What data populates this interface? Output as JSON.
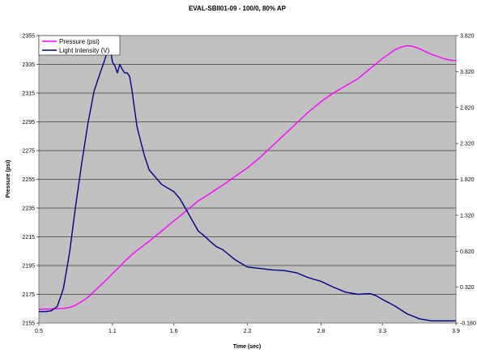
{
  "chart_data": {
    "type": "line",
    "title": "EVAL-SBII01-09 - 100/0, 80% AP",
    "xlabel": "Time (sec)",
    "ylabel": "Pressure (psi)",
    "y2label": "",
    "xlim": [
      0.5,
      3.9
    ],
    "ylim": [
      2155,
      2355
    ],
    "y2lim": [
      -0.18,
      3.82
    ],
    "x_ticks": [
      "0.5",
      "1.1",
      "1.6",
      "2.2",
      "2.8",
      "3.3",
      "3.9"
    ],
    "y_ticks": [
      "2155",
      "2175",
      "2195",
      "2215",
      "2235",
      "2255",
      "2275",
      "2295",
      "2315",
      "2335",
      "2355"
    ],
    "y2_ticks": [
      "-0.180",
      "0.320",
      "0.820",
      "1.320",
      "1.820",
      "2.320",
      "2.820",
      "3.320",
      "3.820"
    ],
    "grid": "horizontal",
    "legend_position": "top-left",
    "plot_background": "#c0c0c0",
    "series": [
      {
        "name": "Pressure (psi)",
        "axis": "left",
        "color": "#ff00ff",
        "x": [
          0.5,
          0.6,
          0.7,
          0.75,
          0.8,
          0.85,
          0.9,
          0.95,
          1.0,
          1.05,
          1.1,
          1.15,
          1.2,
          1.25,
          1.3,
          1.4,
          1.5,
          1.6,
          1.7,
          1.8,
          1.9,
          2.0,
          2.1,
          2.2,
          2.3,
          2.4,
          2.5,
          2.6,
          2.7,
          2.8,
          2.9,
          3.0,
          3.1,
          3.2,
          3.3,
          3.4,
          3.45,
          3.5,
          3.55,
          3.6,
          3.7,
          3.8,
          3.85,
          3.9
        ],
        "values": [
          2164.5,
          2164.8,
          2165.2,
          2165.8,
          2167.5,
          2170,
          2173,
          2177,
          2181,
          2185,
          2189.5,
          2193.5,
          2198,
          2202,
          2205.5,
          2212,
          2219,
          2226,
          2233,
          2240,
          2245.5,
          2251,
          2257,
          2263,
          2270,
          2278,
          2286,
          2294,
          2302,
          2309,
          2315,
          2320,
          2325,
          2332,
          2339,
          2345,
          2347,
          2348,
          2347.5,
          2346,
          2342,
          2339,
          2338,
          2337.5
        ]
      },
      {
        "name": "Light Intensity (V)",
        "axis": "right",
        "color": "#000080",
        "x": [
          0.5,
          0.55,
          0.6,
          0.65,
          0.7,
          0.75,
          0.8,
          0.85,
          0.9,
          0.95,
          1.0,
          1.03,
          1.06,
          1.08,
          1.1,
          1.12,
          1.14,
          1.16,
          1.18,
          1.2,
          1.22,
          1.24,
          1.26,
          1.28,
          1.3,
          1.33,
          1.36,
          1.4,
          1.45,
          1.5,
          1.55,
          1.6,
          1.65,
          1.7,
          1.75,
          1.8,
          1.85,
          1.9,
          1.95,
          2.0,
          2.1,
          2.2,
          2.3,
          2.4,
          2.5,
          2.6,
          2.7,
          2.8,
          2.9,
          3.0,
          3.1,
          3.2,
          3.25,
          3.3,
          3.4,
          3.5,
          3.6,
          3.7,
          3.8,
          3.9
        ],
        "values": [
          -0.02,
          -0.02,
          -0.01,
          0.05,
          0.3,
          0.8,
          1.45,
          2.05,
          2.6,
          3.05,
          3.3,
          3.45,
          3.6,
          3.65,
          3.45,
          3.4,
          3.3,
          3.42,
          3.35,
          3.3,
          3.3,
          3.25,
          3.05,
          2.8,
          2.55,
          2.35,
          2.15,
          1.95,
          1.85,
          1.75,
          1.7,
          1.65,
          1.55,
          1.4,
          1.25,
          1.1,
          1.03,
          0.95,
          0.88,
          0.84,
          0.7,
          0.6,
          0.58,
          0.56,
          0.55,
          0.52,
          0.45,
          0.4,
          0.32,
          0.25,
          0.22,
          0.23,
          0.2,
          0.15,
          0.06,
          -0.05,
          -0.12,
          -0.15,
          -0.15,
          -0.15
        ]
      }
    ]
  }
}
